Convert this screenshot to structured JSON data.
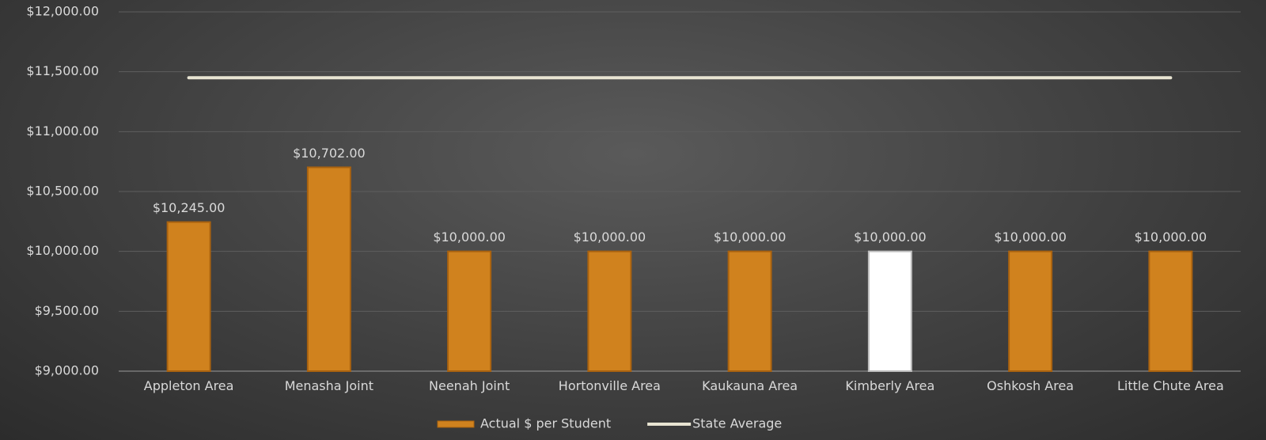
{
  "chart_data": {
    "type": "bar",
    "legend": "bottom",
    "grid": true,
    "categories": [
      "Appleton Area",
      "Menasha Joint",
      "Neenah Joint",
      "Hortonville Area",
      "Kaukauna Area",
      "Kimberly Area",
      "Oshkosh Area",
      "Little Chute Area"
    ],
    "series": [
      {
        "name": "Actual $ per Student",
        "type": "bar",
        "color": "#d0821e",
        "colors": [
          "#d0821e",
          "#d0821e",
          "#d0821e",
          "#d0821e",
          "#d0821e",
          "#ffffff",
          "#d0821e",
          "#d0821e"
        ],
        "values": [
          10245,
          10702,
          10000,
          10000,
          10000,
          10000,
          10000,
          10000
        ],
        "value_labels": [
          "$10,245.00",
          "$10,702.00",
          "$10,000.00",
          "$10,000.00",
          "$10,000.00",
          "$10,000.00",
          "$10,000.00",
          "$10,000.00"
        ]
      },
      {
        "name": "State Average",
        "type": "line",
        "color": "#e8e4d2",
        "values": [
          11450,
          11450,
          11450,
          11450,
          11450,
          11450,
          11450,
          11450
        ]
      }
    ],
    "ylim": [
      9000,
      12000
    ],
    "yticks": [
      {
        "value": 9000,
        "label": "$9,000.00"
      },
      {
        "value": 9500,
        "label": "$9,500.00"
      },
      {
        "value": 10000,
        "label": "$10,000.00"
      },
      {
        "value": 10500,
        "label": "$10,500.00"
      },
      {
        "value": 11000,
        "label": "$11,000.00"
      },
      {
        "value": 11500,
        "label": "$11,500.00"
      },
      {
        "value": 12000,
        "label": "$12,000.00"
      }
    ]
  }
}
